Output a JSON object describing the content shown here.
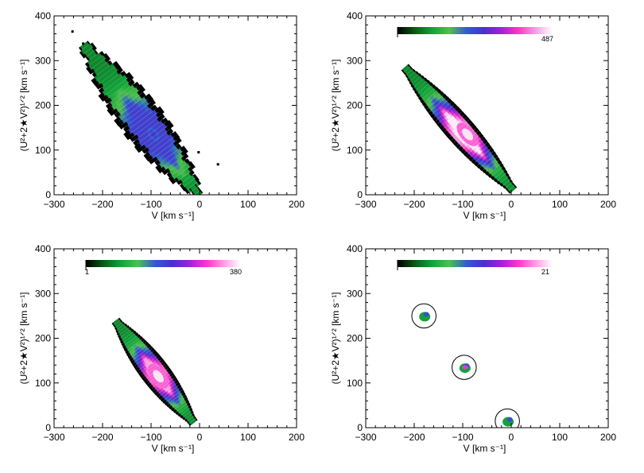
{
  "figure": {
    "background": "#ffffff",
    "ink_color": "#000000"
  },
  "colormap": {
    "name": "black-green-blue-magenta-white",
    "stops": [
      "#000000",
      "#0a5a14",
      "#10a23a",
      "#4ec24a",
      "#2f5dcf",
      "#4a2fd0",
      "#a020d8",
      "#ff33cc",
      "#ff9ae6",
      "#ffffff"
    ]
  },
  "chart_data": [
    {
      "type": "density",
      "panel": "top-left",
      "xlabel": "V [km s⁻¹]",
      "ylabel": "(U²+2★V²)¹ᐟ² [km s⁻¹]",
      "xlim": [
        -300,
        200
      ],
      "ylim": [
        0,
        400
      ],
      "xticks": [
        "−300",
        "−200",
        "−100",
        "0",
        "100",
        "200"
      ],
      "yticks": [
        "0",
        "100",
        "200",
        "300",
        "400"
      ],
      "xtick_values": [
        -300,
        -200,
        -100,
        0,
        100,
        200
      ],
      "ytick_values": [
        0,
        100,
        200,
        300,
        400
      ],
      "colorbar": null,
      "density_peak": {
        "V": -95,
        "Q": 135
      },
      "band": {
        "x_top": -235,
        "y_top": 330,
        "x_bottom": -5,
        "y_bottom": 5,
        "peak_pos": 0.6
      },
      "outliers": [
        {
          "V": -262,
          "Q": 365
        },
        {
          "V": -240,
          "Q": 338
        },
        {
          "V": -2,
          "Q": 95
        },
        {
          "V": 38,
          "Q": 68
        }
      ]
    },
    {
      "type": "density",
      "panel": "top-right",
      "xlabel": "V [km s⁻¹]",
      "ylabel": "(U²+2★V²)¹ᐟ² [km s⁻¹]",
      "xlim": [
        -300,
        200
      ],
      "ylim": [
        0,
        400
      ],
      "xticks": [
        "−300",
        "−200",
        "−100",
        "0",
        "100",
        "200"
      ],
      "yticks": [
        "0",
        "100",
        "200",
        "300",
        "400"
      ],
      "xtick_values": [
        -300,
        -200,
        -100,
        0,
        100,
        200
      ],
      "ytick_values": [
        0,
        100,
        200,
        300,
        400
      ],
      "colorbar": {
        "min_label": "",
        "max_label": "487",
        "vmax": 487
      },
      "density_peak": {
        "V": -90,
        "Q": 135
      },
      "band": {
        "x_top": -215,
        "y_top": 280,
        "x_bottom": 0,
        "y_bottom": 15,
        "peak_pos": 0.55
      }
    },
    {
      "type": "density",
      "panel": "bottom-left",
      "xlabel": "V [km s⁻¹]",
      "ylabel": "(U²+2★V²)¹ᐟ² [km s⁻¹]",
      "xlim": [
        -300,
        200
      ],
      "ylim": [
        0,
        400
      ],
      "xticks": [
        "−300",
        "−200",
        "−100",
        "0",
        "100",
        "200"
      ],
      "yticks": [
        "0",
        "100",
        "200",
        "300",
        "400"
      ],
      "xtick_values": [
        -300,
        -200,
        -100,
        0,
        100,
        200
      ],
      "ytick_values": [
        0,
        100,
        200,
        300,
        400
      ],
      "colorbar": {
        "min_label": "1",
        "max_label": "380",
        "vmin": 1,
        "vmax": 380
      },
      "density_peak": {
        "V": -85,
        "Q": 115
      },
      "band": {
        "x_top": -170,
        "y_top": 235,
        "x_bottom": -15,
        "y_bottom": 15,
        "peak_pos": 0.55
      }
    },
    {
      "type": "density",
      "panel": "bottom-right",
      "xlabel": "V [km s⁻¹]",
      "ylabel": "(U²+2★V²)¹ᐟ² [km s⁻¹]",
      "xlim": [
        -300,
        200
      ],
      "ylim": [
        0,
        400
      ],
      "xticks": [
        "−300",
        "−200",
        "−100",
        "0",
        "100",
        "200"
      ],
      "yticks": [
        "0",
        "100",
        "200",
        "300",
        "400"
      ],
      "xtick_values": [
        -300,
        -200,
        -100,
        0,
        100,
        200
      ],
      "ytick_values": [
        0,
        100,
        200,
        300,
        400
      ],
      "colorbar": {
        "min_label": "",
        "max_label": "21",
        "vmax": 21
      },
      "clumps": [
        {
          "V": -180,
          "Q": 250,
          "circle_radius": 25
        },
        {
          "V": -97,
          "Q": 135,
          "circle_radius": 25
        },
        {
          "V": -8,
          "Q": 15,
          "circle_radius": 25
        }
      ]
    }
  ]
}
